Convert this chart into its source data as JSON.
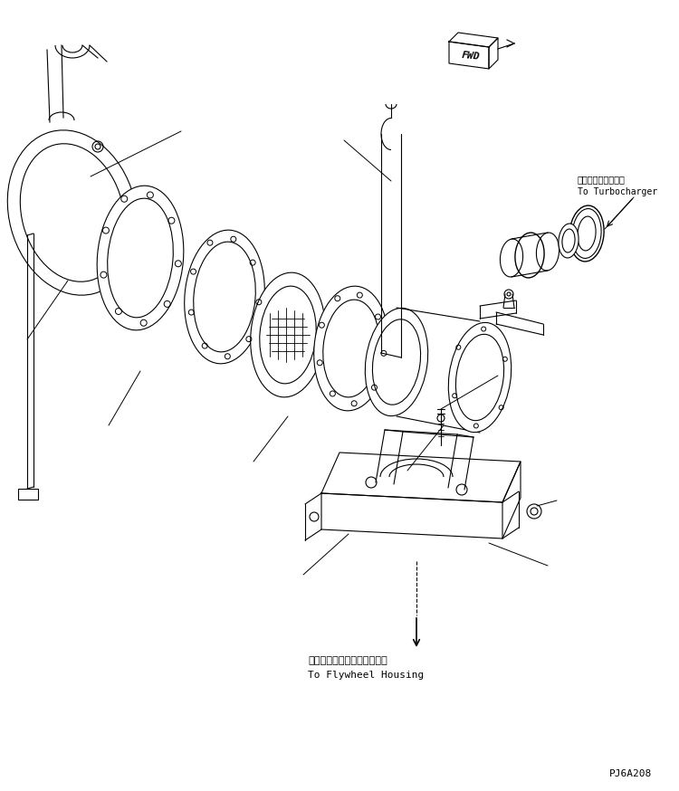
{
  "background_color": "#ffffff",
  "line_color": "#000000",
  "fwd_label": "FWD",
  "turbo_label_jp": "ターボチャージャヘ",
  "turbo_label_en": "To Turbocharger",
  "flywheel_label_jp": "フライホイールハウジングヘ",
  "flywheel_label_en": "To Flywheel Housing",
  "part_code": "PJ6A208",
  "fig_width": 7.5,
  "fig_height": 8.74,
  "dpi": 100
}
